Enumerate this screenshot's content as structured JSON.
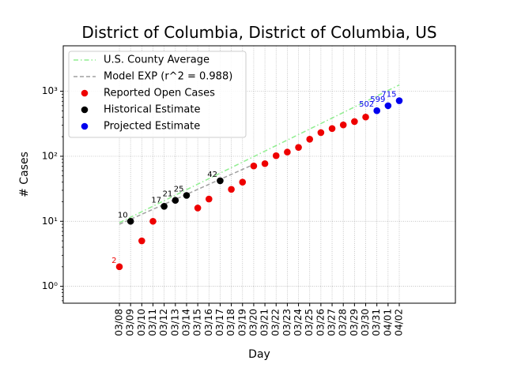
{
  "chart_data": {
    "type": "scatter",
    "title": "District of Columbia, District of Columbia, US",
    "xlabel": "Day",
    "ylabel": "# Cases",
    "y_scale": "log",
    "ylim": [
      0.55,
      5000
    ],
    "grid": true,
    "legend_position": "top-left",
    "categories": [
      "03/08",
      "03/09",
      "03/10",
      "03/11",
      "03/12",
      "03/13",
      "03/14",
      "03/15",
      "03/16",
      "03/17",
      "03/18",
      "03/19",
      "03/20",
      "03/21",
      "03/22",
      "03/23",
      "03/24",
      "03/25",
      "03/26",
      "03/27",
      "03/28",
      "03/29",
      "03/30",
      "03/31",
      "04/01",
      "04/02"
    ],
    "y_ticks": [
      {
        "value": 1,
        "label": "10⁰"
      },
      {
        "value": 10,
        "label": "10¹"
      },
      {
        "value": 100,
        "label": "10²"
      },
      {
        "value": 1000,
        "label": "10³"
      }
    ],
    "series": [
      {
        "name": "U.S. County Average",
        "kind": "line",
        "style": "dashdot",
        "color": "#90ee90",
        "points": [
          {
            "x": "03/08",
            "y": 9.5
          },
          {
            "x": "04/02",
            "y": 1250
          }
        ]
      },
      {
        "name": "Model EXP (r^2 = 0.988)",
        "kind": "line",
        "style": "dashed",
        "color": "#a0a0a0",
        "points": [
          {
            "x": "03/08",
            "y": 9.0
          },
          {
            "x": "03/20",
            "y": 75
          }
        ]
      },
      {
        "name": "Reported Open Cases",
        "kind": "scatter",
        "color": "#ee0000",
        "points": [
          {
            "x": "03/08",
            "y": 2,
            "label": "2"
          },
          {
            "x": "03/10",
            "y": 5
          },
          {
            "x": "03/11",
            "y": 10
          },
          {
            "x": "03/15",
            "y": 16
          },
          {
            "x": "03/16",
            "y": 22
          },
          {
            "x": "03/18",
            "y": 31
          },
          {
            "x": "03/19",
            "y": 40
          },
          {
            "x": "03/20",
            "y": 71
          },
          {
            "x": "03/21",
            "y": 77
          },
          {
            "x": "03/22",
            "y": 102
          },
          {
            "x": "03/23",
            "y": 116
          },
          {
            "x": "03/24",
            "y": 137
          },
          {
            "x": "03/25",
            "y": 183
          },
          {
            "x": "03/26",
            "y": 231
          },
          {
            "x": "03/27",
            "y": 267
          },
          {
            "x": "03/28",
            "y": 304
          },
          {
            "x": "03/29",
            "y": 342
          },
          {
            "x": "03/30",
            "y": 401
          }
        ]
      },
      {
        "name": "Historical Estimate",
        "kind": "scatter",
        "color": "#000000",
        "points": [
          {
            "x": "03/09",
            "y": 10,
            "label": "10"
          },
          {
            "x": "03/12",
            "y": 17,
            "label": "17"
          },
          {
            "x": "03/13",
            "y": 21,
            "label": "21"
          },
          {
            "x": "03/14",
            "y": 25,
            "label": "25"
          },
          {
            "x": "03/17",
            "y": 42,
            "label": "42"
          }
        ]
      },
      {
        "name": "Projected Estimate",
        "kind": "scatter",
        "color": "#0000ee",
        "points": [
          {
            "x": "03/31",
            "y": 502,
            "label": "502"
          },
          {
            "x": "04/01",
            "y": 599,
            "label": "599"
          },
          {
            "x": "04/02",
            "y": 715,
            "label": "715"
          }
        ]
      }
    ]
  }
}
